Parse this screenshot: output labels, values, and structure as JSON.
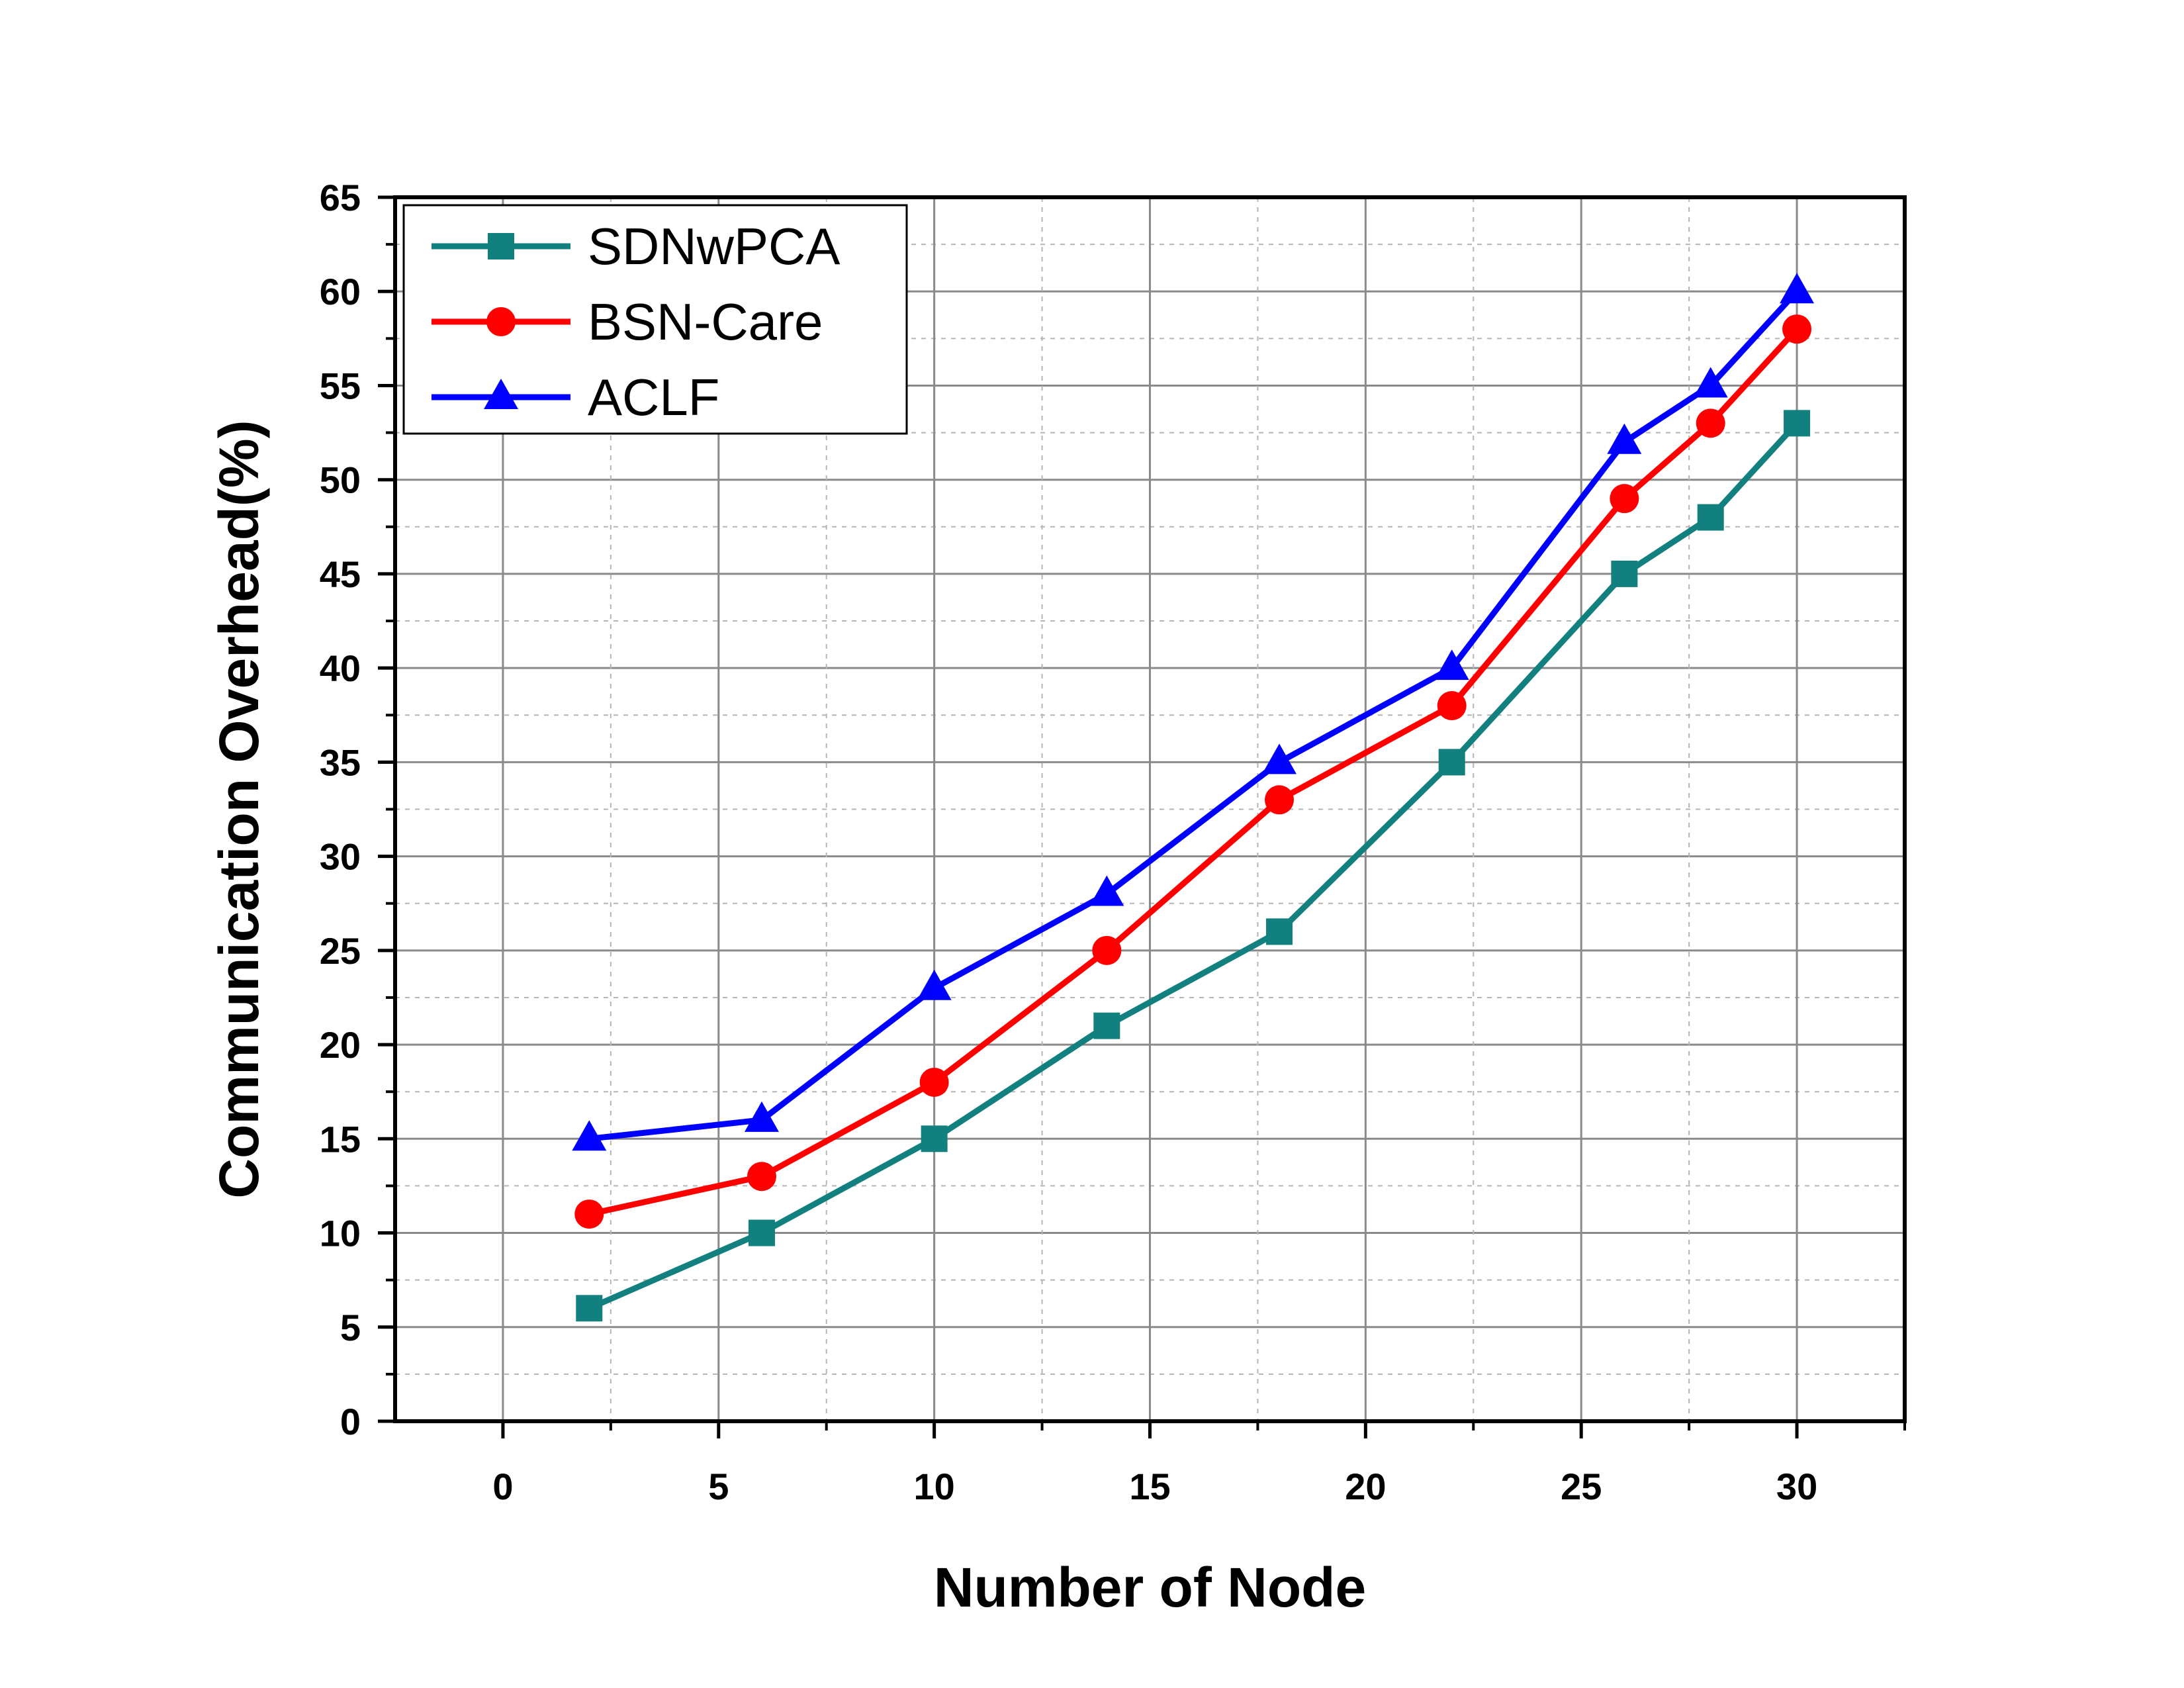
{
  "chart_data": {
    "type": "line",
    "title": "",
    "xlabel": "Number of Node",
    "ylabel": "Communication Overhead(%)",
    "xlim": [
      -2.5,
      32.5
    ],
    "ylim": [
      0,
      65
    ],
    "x_ticks": [
      "0",
      "5",
      "10",
      "15",
      "20",
      "25",
      "30"
    ],
    "y_ticks": [
      "0",
      "5",
      "10",
      "15",
      "20",
      "25",
      "30",
      "35",
      "40",
      "45",
      "50",
      "55",
      "60",
      "65"
    ],
    "grid": true,
    "legend_position": "top-left",
    "x": [
      2,
      6,
      10,
      14,
      18,
      22,
      26,
      28,
      30
    ],
    "series": [
      {
        "name": "SDNwPCA",
        "color": "#138080",
        "marker": "square",
        "values": [
          6,
          10,
          15,
          21,
          26,
          35,
          45,
          48,
          53
        ]
      },
      {
        "name": "BSN-Care",
        "color": "#ff0000",
        "marker": "circle",
        "values": [
          11,
          13,
          18,
          25,
          33,
          38,
          49,
          53,
          58
        ]
      },
      {
        "name": "ACLF",
        "color": "#0000ff",
        "marker": "triangle",
        "values": [
          15,
          16,
          23,
          28,
          35,
          40,
          52,
          55,
          60
        ]
      }
    ]
  }
}
